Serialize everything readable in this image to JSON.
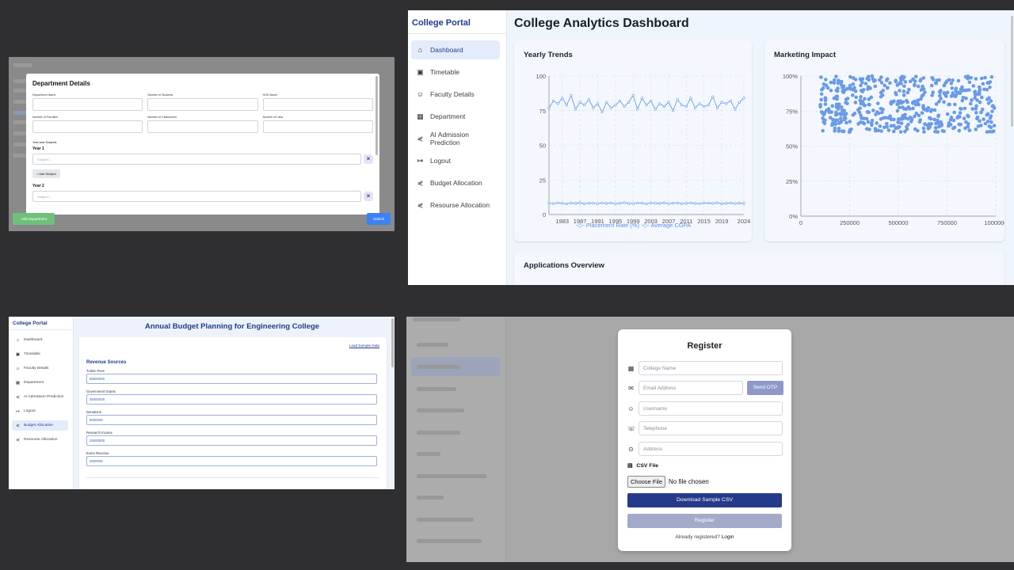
{
  "department_modal": {
    "title": "Department Details",
    "fields": [
      "Department Name",
      "Number of Students",
      "HOD Name",
      "Number of Faculties",
      "Number of Classrooms",
      "Number of Labs"
    ],
    "subjects_label": "Year-wise Subjects",
    "year1": "Year 1",
    "year2": "Year 2",
    "subject_placeholder": "Subject 1",
    "add_subject": "+ Add Subject",
    "remove_icon": "×",
    "add_department": "Add Department",
    "submit": "Submit"
  },
  "dashboard": {
    "brand": "College Portal",
    "title": "College Analytics Dashboard",
    "nav": [
      {
        "label": "Dashboard",
        "icon": "home-icon"
      },
      {
        "label": "Timetable",
        "icon": "calendar-icon"
      },
      {
        "label": "Faculty Details",
        "icon": "users-icon"
      },
      {
        "label": "Department",
        "icon": "building-icon"
      },
      {
        "label": "AI Admission Prediction",
        "icon": "share-icon"
      },
      {
        "label": "Logout",
        "icon": "logout-icon"
      },
      {
        "label": "Budget Allocation",
        "icon": "share-icon"
      },
      {
        "label": "Resourse Allocation",
        "icon": "share-icon"
      }
    ],
    "yearly_title": "Yearly Trends",
    "marketing_title": "Marketing Impact",
    "applications_title": "Applications Overview",
    "accent": "#6a9ae8"
  },
  "chart_data": [
    {
      "type": "line",
      "title": "Yearly Trends",
      "x_tick_labels": [
        "1983",
        "1987",
        "1991",
        "1995",
        "1999",
        "2003",
        "2007",
        "2011",
        "2015",
        "2019",
        "2024"
      ],
      "y_tick_labels": [
        "0",
        "25",
        "50",
        "75",
        "100"
      ],
      "ylim": [
        0,
        100
      ],
      "xlim": [
        1980,
        2024
      ],
      "series": [
        {
          "name": "Placement Rate (%)",
          "x": [
            1980,
            1981,
            1982,
            1983,
            1984,
            1985,
            1986,
            1987,
            1988,
            1989,
            1990,
            1991,
            1992,
            1993,
            1994,
            1995,
            1996,
            1997,
            1998,
            1999,
            2000,
            2001,
            2002,
            2003,
            2004,
            2005,
            2006,
            2007,
            2008,
            2009,
            2010,
            2011,
            2012,
            2013,
            2014,
            2015,
            2016,
            2017,
            2018,
            2019,
            2020,
            2021,
            2022,
            2023,
            2024
          ],
          "values": [
            77,
            82,
            80,
            84,
            79,
            86,
            76,
            81,
            79,
            83,
            77,
            80,
            74,
            81,
            77,
            79,
            82,
            78,
            81,
            86,
            76,
            84,
            79,
            82,
            76,
            80,
            78,
            81,
            75,
            83,
            79,
            78,
            84,
            77,
            80,
            78,
            79,
            85,
            77,
            81,
            80,
            82,
            76,
            81,
            84
          ]
        },
        {
          "name": "Average CGPA",
          "x": [
            1980,
            1981,
            1982,
            1983,
            1984,
            1985,
            1986,
            1987,
            1988,
            1989,
            1990,
            1991,
            1992,
            1993,
            1994,
            1995,
            1996,
            1997,
            1998,
            1999,
            2000,
            2001,
            2002,
            2003,
            2004,
            2005,
            2006,
            2007,
            2008,
            2009,
            2010,
            2011,
            2012,
            2013,
            2014,
            2015,
            2016,
            2017,
            2018,
            2019,
            2020,
            2021,
            2022,
            2023,
            2024
          ],
          "values": [
            8.2,
            7.9,
            8.4,
            8.1,
            7.7,
            8.3,
            8.0,
            8.5,
            7.8,
            8.2,
            8.1,
            7.9,
            8.4,
            8.0,
            8.3,
            7.8,
            8.1,
            8.6,
            8.0,
            7.9,
            8.3,
            8.2,
            7.7,
            8.4,
            8.1,
            8.0,
            8.5,
            7.9,
            8.2,
            8.3,
            7.8,
            8.1,
            8.4,
            8.0,
            7.9,
            8.3,
            8.2,
            8.0,
            8.5,
            7.8,
            8.1,
            8.3,
            7.9,
            8.2,
            8.0
          ]
        }
      ],
      "legend": "bottom"
    },
    {
      "type": "scatter",
      "title": "Marketing Impact",
      "x_tick_labels": [
        "0",
        "250000",
        "500000",
        "750000",
        "1000000"
      ],
      "y_tick_labels": [
        "0%",
        "25%",
        "50%",
        "75%",
        "100%"
      ],
      "xlim": [
        0,
        1000000
      ],
      "ylim": [
        0,
        100
      ],
      "point_count": 500,
      "x_range": [
        100000,
        1000000
      ],
      "y_range": [
        60,
        100
      ]
    }
  ],
  "budget": {
    "brand": "College Portal",
    "title": "Annual Budget Planning for Engineering College",
    "load_sample": "Load Sample Data",
    "revenue_title": "Revenue Sources",
    "fields": [
      {
        "label": "Tuition Fees",
        "value": "85000000"
      },
      {
        "label": "Government Grants",
        "value": "35000000"
      },
      {
        "label": "Donations",
        "value": "8000000"
      },
      {
        "label": "Research Income",
        "value": "15000000"
      },
      {
        "label": "Event Revenue",
        "value": "3500000"
      }
    ],
    "nav": [
      {
        "label": "Dashboard",
        "icon": "home-icon"
      },
      {
        "label": "Timetable",
        "icon": "calendar-icon"
      },
      {
        "label": "Faculty Details",
        "icon": "users-icon"
      },
      {
        "label": "Department",
        "icon": "building-icon"
      },
      {
        "label": "AI Admission Prediction",
        "icon": "share-icon"
      },
      {
        "label": "Logout",
        "icon": "logout-icon"
      },
      {
        "label": "Budget Allocation",
        "icon": "share-icon"
      },
      {
        "label": "Resourse Allocation",
        "icon": "share-icon"
      }
    ]
  },
  "register": {
    "title": "Register",
    "college_placeholder": "College Name",
    "email_placeholder": "Email Address",
    "send_otp": "Send OTP",
    "username_placeholder": "Username",
    "telephone_placeholder": "Telephone",
    "address_placeholder": "Address",
    "csv_label": "CSV File",
    "choose_file": "Choose File",
    "no_file": "No file chosen",
    "download_sample": "Download Sample CSV",
    "register_btn": "Register",
    "already_text": "Already registered?",
    "login_link": "Login"
  }
}
